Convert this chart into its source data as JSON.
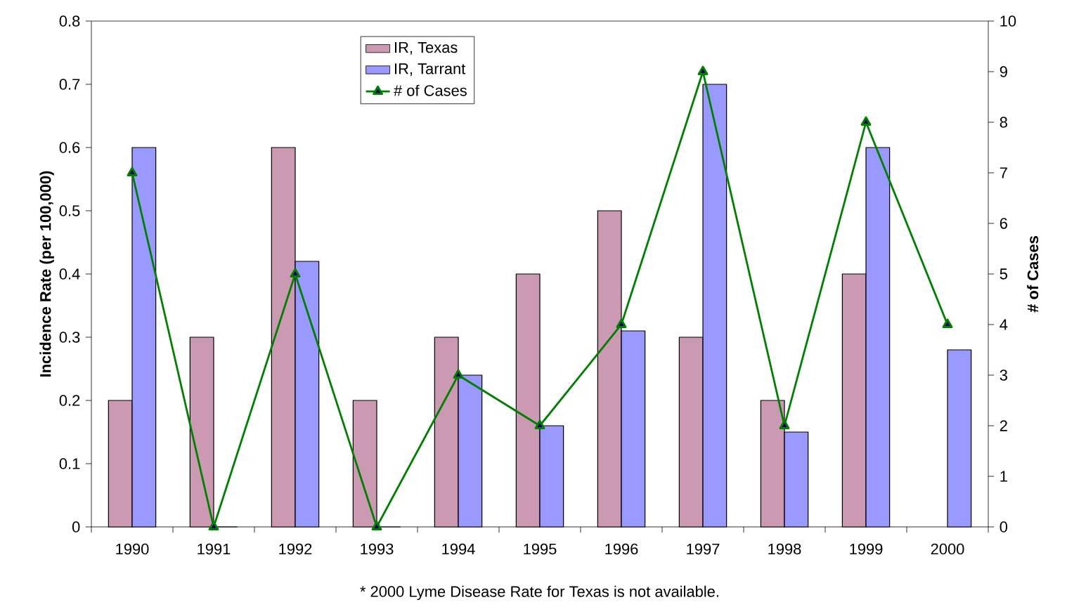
{
  "chart_data": {
    "type": "bar",
    "categories": [
      "1990",
      "1991",
      "1992",
      "1993",
      "1994",
      "1995",
      "1996",
      "1997",
      "1998",
      "1999",
      "2000"
    ],
    "ylabel": "Incidence Rate (per 100,000)",
    "y2label": "# of Cases",
    "ylim": [
      0,
      0.8
    ],
    "yticks": [
      0,
      0.1,
      0.2,
      0.3,
      0.4,
      0.5,
      0.6,
      0.7,
      0.8
    ],
    "y2lim": [
      0,
      10
    ],
    "y2ticks": [
      0,
      1,
      2,
      3,
      4,
      5,
      6,
      7,
      8,
      9,
      10
    ],
    "series": [
      {
        "name": "IR, Texas",
        "color": "#cc99b3",
        "values": [
          0.2,
          0.3,
          0.6,
          0.2,
          0.3,
          0.4,
          0.5,
          0.3,
          0.2,
          0.4,
          null
        ]
      },
      {
        "name": "IR, Tarrant",
        "color": "#9999ff",
        "values": [
          0.6,
          0,
          0.42,
          0,
          0.24,
          0.16,
          0.31,
          0.7,
          0.15,
          0.6,
          0.28
        ]
      },
      {
        "name": "# of Cases",
        "type": "line",
        "axis": "y2",
        "color": "#008000",
        "marker": "triangle",
        "values": [
          7,
          0,
          5,
          0,
          3,
          2,
          4,
          9,
          2,
          8,
          4
        ]
      }
    ],
    "legend": "top left",
    "grid": false,
    "annotations": [
      "* 2000 Lyme Disease Rate for Texas is not available."
    ]
  }
}
